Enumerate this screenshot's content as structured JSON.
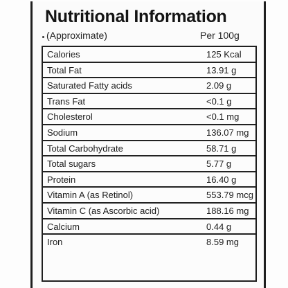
{
  "label": {
    "title": "Nutritional Information",
    "subtitle_left": "(Approximate)",
    "subtitle_right": "Per 100g",
    "rows": [
      {
        "name": "Calories",
        "value": "125 Kcal"
      },
      {
        "name": "Total Fat",
        "value": "13.91 g"
      },
      {
        "name": "Saturated Fatty acids",
        "value": "2.09 g"
      },
      {
        "name": "Trans Fat",
        "value": "<0.1 g"
      },
      {
        "name": "Cholesterol",
        "value": "<0.1 mg"
      },
      {
        "name": "Sodium",
        "value": "136.07 mg"
      },
      {
        "name": "Total Carbohydrate",
        "value": "58.71 g"
      },
      {
        "name": "Total sugars",
        "value": "5.77 g"
      },
      {
        "name": "Protein",
        "value": "16.40 g"
      },
      {
        "name": "Vitamin A (as Retinol)",
        "value": "553.79 mcg"
      },
      {
        "name": "Vitamin C (as Ascorbic acid)",
        "value": "188.16 mg"
      },
      {
        "name": "Calcium",
        "value": "0.44 g"
      },
      {
        "name": "Iron",
        "value": "8.59 mg"
      }
    ]
  }
}
